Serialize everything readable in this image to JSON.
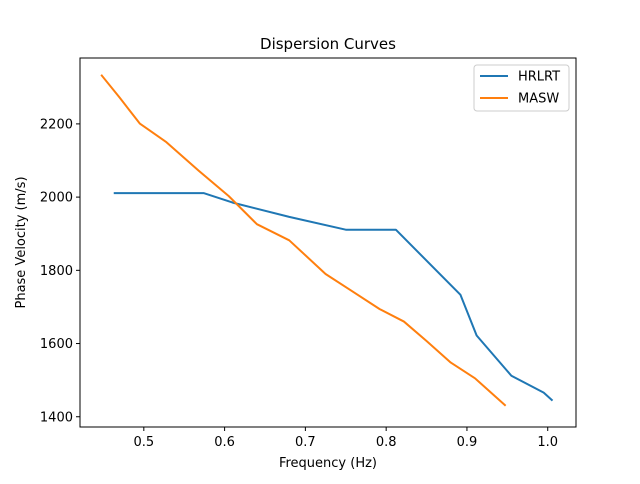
{
  "chart_data": {
    "type": "line",
    "title": "Dispersion Curves",
    "xlabel": "Frequency (Hz)",
    "ylabel": "Phase Velocity (m/s)",
    "xlim": [
      0.421,
      1.035
    ],
    "ylim": [
      1372,
      2380
    ],
    "xticks": [
      0.5,
      0.6,
      0.7,
      0.8,
      0.9,
      1.0
    ],
    "xtick_labels": [
      "0.5",
      "0.6",
      "0.7",
      "0.8",
      "0.9",
      "1.0"
    ],
    "yticks": [
      1400,
      1600,
      1800,
      2000,
      2200
    ],
    "ytick_labels": [
      "1400",
      "1600",
      "1800",
      "2000",
      "2200"
    ],
    "grid": false,
    "legend_position": "upper right",
    "series": [
      {
        "name": "HRLRT",
        "color": "#1f77b4",
        "x": [
          0.464,
          0.574,
          0.61,
          0.68,
          0.75,
          0.812,
          0.892,
          0.912,
          0.955,
          0.995,
          1.005
        ],
        "y": [
          2011,
          2011,
          1985,
          1946,
          1911,
          1911,
          1733,
          1622,
          1512,
          1466,
          1446
        ]
      },
      {
        "name": "MASW",
        "color": "#ff7f0e",
        "x": [
          0.448,
          0.47,
          0.495,
          0.528,
          0.568,
          0.605,
          0.64,
          0.68,
          0.725,
          0.755,
          0.792,
          0.822,
          0.85,
          0.88,
          0.91,
          0.947
        ],
        "y": [
          2332,
          2272,
          2201,
          2150,
          2072,
          2003,
          1926,
          1882,
          1790,
          1747,
          1694,
          1660,
          1607,
          1548,
          1505,
          1432
        ]
      }
    ]
  }
}
